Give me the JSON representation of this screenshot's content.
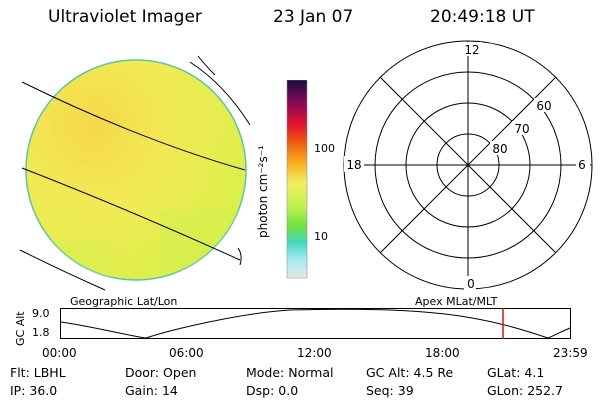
{
  "header": {
    "instrument": "Ultraviolet Imager",
    "date": "23 Jan 07",
    "time": "20:49:18 UT"
  },
  "colorbar": {
    "unit_label": "photon cm⁻²s⁻¹",
    "tick_labels": [
      "100",
      "10"
    ]
  },
  "polar_plot": {
    "mlt_labels": {
      "top": "12",
      "right": "6",
      "bottom": "0",
      "left": "18"
    },
    "mlat_labels": [
      "60",
      "70",
      "80"
    ]
  },
  "panel_labels": {
    "left": "Geographic Lat/Lon",
    "right": "Apex  MLat/MLT"
  },
  "altitude_strip": {
    "axis_label": "GC Alt",
    "y_ticks": [
      "9.0",
      "1.8"
    ],
    "x_ticks": [
      "00:00",
      "06:00",
      "12:00",
      "18:00",
      "23:59"
    ],
    "marker_time": "20:49"
  },
  "info": {
    "row1": [
      {
        "key": "Flt:",
        "value": "LBHL"
      },
      {
        "key": "Door:",
        "value": "Open"
      },
      {
        "key": "Mode:",
        "value": "Normal"
      },
      {
        "key": "GC Alt:",
        "value": "4.5 Re"
      },
      {
        "key": "GLat:",
        "value": "4.1"
      }
    ],
    "row2": [
      {
        "key": "IP:",
        "value": "36.0"
      },
      {
        "key": "Gain:",
        "value": "14"
      },
      {
        "key": "Dsp:",
        "value": "0.0"
      },
      {
        "key": "Seq:",
        "value": "39"
      },
      {
        "key": "GLon:",
        "value": "252.7"
      }
    ]
  },
  "colors": {
    "marker": "#e01010",
    "disk_main": "#eef060",
    "disk_bright": "#f6dc4a"
  }
}
